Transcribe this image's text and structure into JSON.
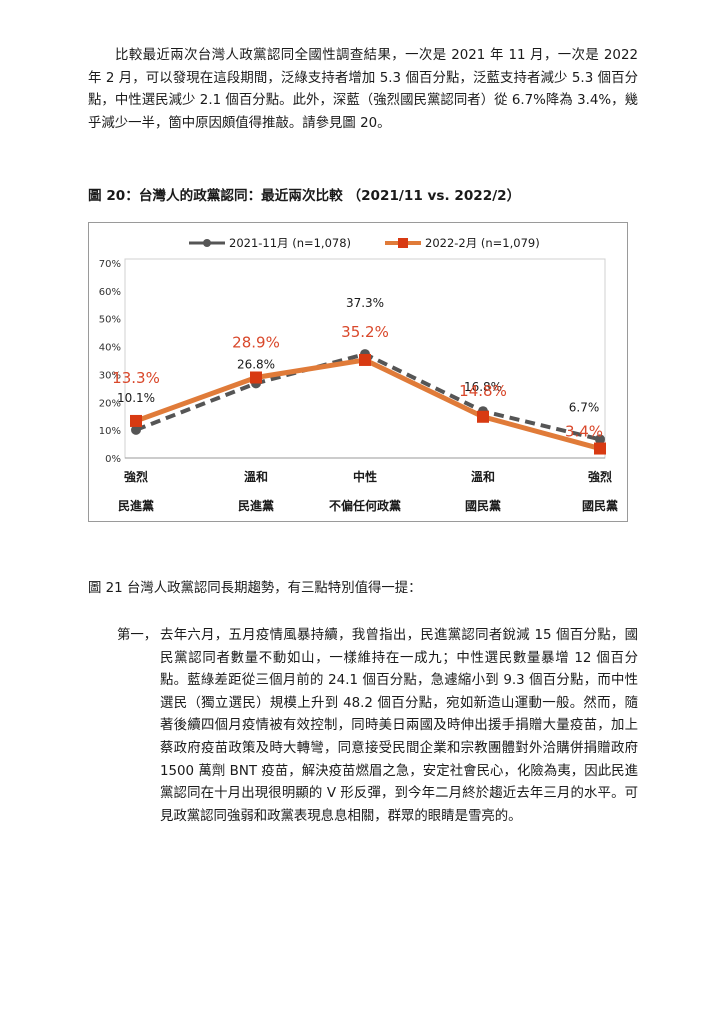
{
  "intro_paragraph": "比較最近兩次台灣人政黨認同全國性調查結果，一次是 2021 年 11 月，一次是 2022 年 2 月，可以發現在這段期間，泛綠支持者增加 5.3 個百分點，泛藍支持者減少 5.3 個百分點，中性選民減少 2.1 個百分點。此外，深藍（強烈國民黨認同者）從 6.7%降為 3.4%，幾乎減少一半，箇中原因頗值得推敲。請參見圖 20。",
  "figure_caption": "圖 20：台灣人的政黨認同：最近兩次比較 （2021/11 vs. 2022/2）",
  "chart_data": {
    "type": "line",
    "categories": [
      [
        "強烈",
        "民進黨"
      ],
      [
        "溫和",
        "民進黨"
      ],
      [
        "中性",
        "不偏任何政黨"
      ],
      [
        "溫和",
        "國民黨"
      ],
      [
        "強烈",
        "國民黨"
      ]
    ],
    "ylim": [
      0,
      70
    ],
    "yticks": [
      "0%",
      "10%",
      "20%",
      "30%",
      "40%",
      "50%",
      "60%",
      "70%"
    ],
    "legend_position": "top",
    "grid": false,
    "series": [
      {
        "name": "2021-11月 (n=1,078)",
        "values": [
          10.1,
          26.8,
          37.3,
          16.8,
          6.7
        ],
        "labels": [
          "10.1%",
          "26.8%",
          "37.3%",
          "16.8%",
          "6.7%"
        ],
        "color": "#555555",
        "style": "dashed"
      },
      {
        "name": "2022-2月 (n=1,079)",
        "values": [
          13.3,
          28.9,
          35.2,
          14.8,
          3.4
        ],
        "labels": [
          "13.3%",
          "28.9%",
          "35.2%",
          "14.8%",
          "3.4%"
        ],
        "color": "#e07b39",
        "label_color": "#d9482b",
        "style": "solid"
      }
    ]
  },
  "section_intro": "圖 21 台灣人政黨認同長期趨勢，有三點特別值得一提：",
  "first_point": {
    "lead": "第一，",
    "text": "去年六月，五月疫情風暴持續，我曾指出，民進黨認同者銳減 15 個百分點，國民黨認同者數量不動如山，一樣維持在一成九；中性選民數量暴增 12 個百分點。藍綠差距從三個月前的 24.1 個百分點，急遽縮小到 9.3 個百分點，而中性選民（獨立選民）規模上升到 48.2 個百分點，宛如新造山運動一般。然而，隨著後續四個月疫情被有效控制，同時美日兩國及時伸出援手捐贈大量疫苗，加上蔡政府疫苗政策及時大轉彎，同意接受民間企業和宗教團體對外洽購併捐贈政府 1500 萬劑 BNT 疫苗，解決疫苗燃眉之急，安定社會民心，化險為夷，因此民進黨認同在十月出現很明顯的 V 形反彈，到今年二月終於趨近去年三月的水平。可見政黨認同強弱和政黨表現息息相關，群眾的眼睛是雪亮的。"
  }
}
